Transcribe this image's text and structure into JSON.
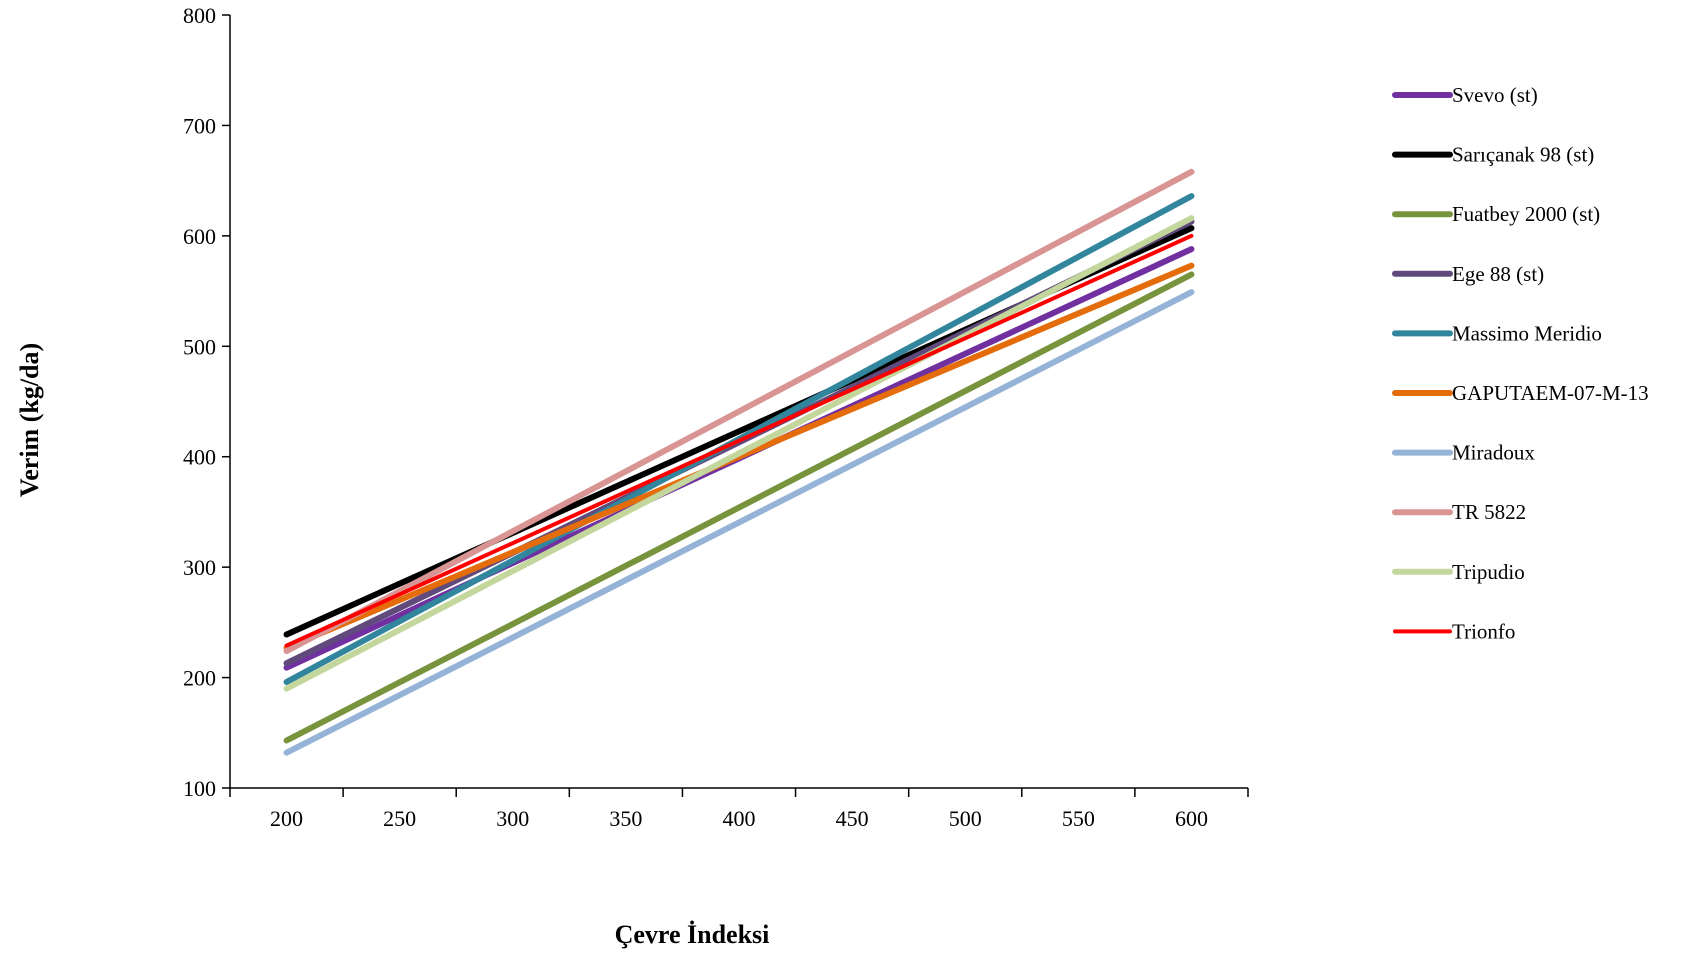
{
  "chart_data": {
    "type": "line",
    "title": "",
    "xlabel": "Çevre İndeksi",
    "ylabel": "Verim (kg/da)",
    "xlim": [
      175,
      625
    ],
    "ylim": [
      100,
      800
    ],
    "xticks": [
      200,
      250,
      300,
      350,
      400,
      450,
      500,
      550,
      600
    ],
    "yticks": [
      100,
      200,
      300,
      400,
      500,
      600,
      700,
      800
    ],
    "grid": false,
    "legend_position": "right",
    "x": [
      200,
      600
    ],
    "series": [
      {
        "name": "Svevo (st)",
        "color": "#7030A0",
        "values": [
          209,
          588
        ]
      },
      {
        "name": "Sarıçanak 98 (st)",
        "color": "#000000",
        "values": [
          239,
          607
        ]
      },
      {
        "name": "Fuatbey 2000 (st)",
        "color": "#77933C",
        "values": [
          143,
          565
        ]
      },
      {
        "name": "Ege 88 (st)",
        "color": "#604A7B",
        "values": [
          213,
          613
        ]
      },
      {
        "name": "Massimo Meridio",
        "color": "#31859C",
        "values": [
          196,
          636
        ]
      },
      {
        "name": "GAPUTAEM-07-M-13",
        "color": "#E46C0A",
        "values": [
          227,
          573
        ]
      },
      {
        "name": "Miradoux",
        "color": "#95B3D7",
        "values": [
          132,
          549
        ]
      },
      {
        "name": "TR 5822",
        "color": "#D99594",
        "values": [
          224,
          658
        ]
      },
      {
        "name": "Tripudio",
        "color": "#C3D69B",
        "values": [
          190,
          616
        ]
      },
      {
        "name": "Trionfo",
        "color": "#FF0000",
        "values": [
          229,
          600
        ]
      }
    ]
  }
}
